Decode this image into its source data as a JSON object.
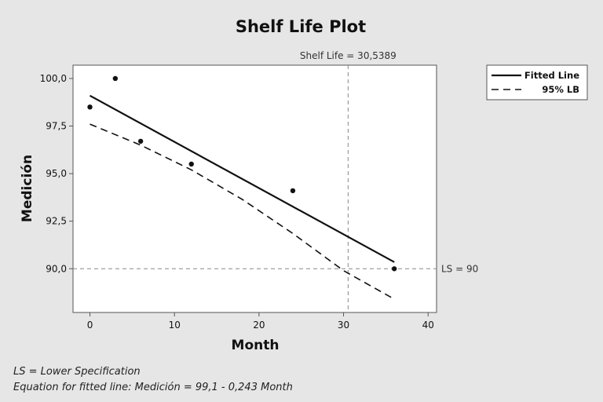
{
  "chart_data": {
    "type": "line",
    "title": "Shelf Life Plot",
    "xlabel": "Month",
    "ylabel": "Medición",
    "xlim": [
      -2,
      41
    ],
    "ylim": [
      87.7,
      100.7
    ],
    "xticks": [
      0,
      10,
      20,
      30,
      40
    ],
    "xtick_labels": [
      "0",
      "10",
      "20",
      "30",
      "40"
    ],
    "yticks": [
      90,
      92.5,
      95,
      97.5,
      100
    ],
    "ytick_labels": [
      "90,0",
      "92,5",
      "95,0",
      "97,5",
      "100,0"
    ],
    "grid": false,
    "legend_position": "outside-right",
    "legend": [
      "Fitted Line",
      "95% LB"
    ],
    "series": [
      {
        "name": "Fitted Line",
        "style": "solid",
        "x": [
          0,
          36
        ],
        "y": [
          99.1,
          90.35
        ]
      },
      {
        "name": "95% LB",
        "style": "dashed",
        "x": [
          0,
          6,
          12,
          18,
          24,
          30,
          36
        ],
        "y": [
          97.6,
          96.5,
          95.2,
          93.65,
          91.85,
          89.9,
          88.4
        ]
      }
    ],
    "points": {
      "x": [
        0,
        3,
        6,
        12,
        24,
        36
      ],
      "y": [
        98.5,
        100.0,
        96.7,
        95.5,
        94.1,
        90.0
      ]
    },
    "reference_lines": {
      "vertical": {
        "x": 30.5389,
        "label": "Shelf Life = 30,5389"
      },
      "horizontal": {
        "y": 90,
        "label": "LS = 90"
      }
    },
    "footnotes": [
      "LS = Lower Specification",
      "Equation for fitted line: Medición = 99,1 - 0,243 Month"
    ]
  }
}
